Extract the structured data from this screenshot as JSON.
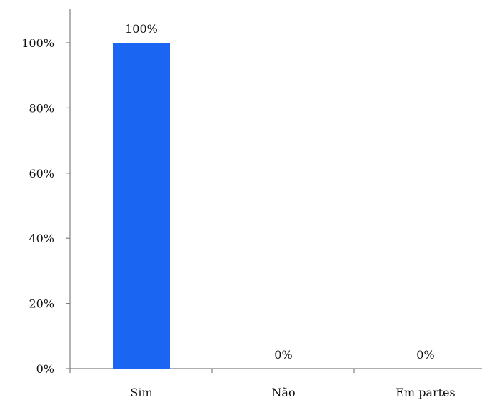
{
  "chart_data": {
    "type": "bar",
    "categories": [
      "Sim",
      "Não",
      "Em partes"
    ],
    "values": [
      100,
      0,
      0
    ],
    "data_labels": [
      "100%",
      "0%",
      "0%"
    ],
    "y_ticks": [
      "0%",
      "20%",
      "40%",
      "60%",
      "80%",
      "100%"
    ],
    "ylim": [
      0,
      100
    ],
    "grid": false,
    "legend": "none",
    "bar_color": "#1a66f2"
  }
}
